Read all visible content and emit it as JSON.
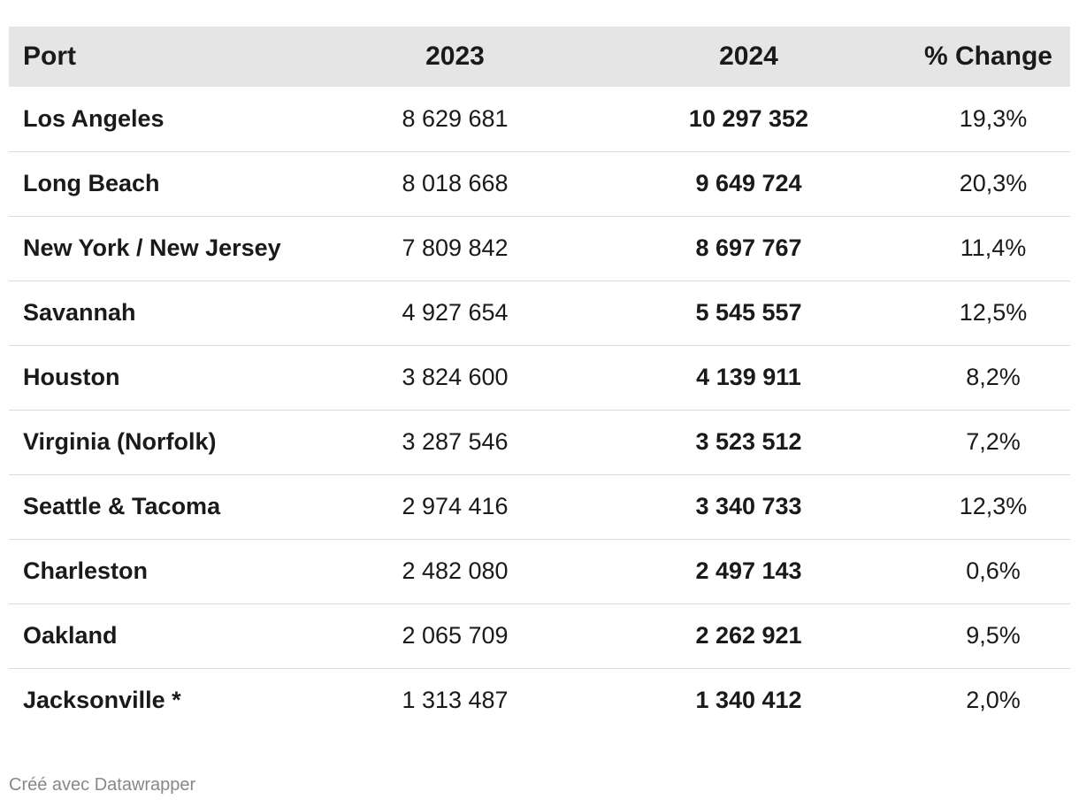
{
  "chart_data": {
    "type": "table",
    "columns": [
      "Port",
      "2023",
      "2024",
      "% Change"
    ],
    "rows": [
      {
        "port": "Los Angeles",
        "y2023": "8 629 681",
        "y2024": "10 297 352",
        "change": "19,3%"
      },
      {
        "port": "Long Beach",
        "y2023": "8 018 668",
        "y2024": "9 649 724",
        "change": "20,3%"
      },
      {
        "port": "New York / New Jersey",
        "y2023": "7 809 842",
        "y2024": "8 697 767",
        "change": "11,4%"
      },
      {
        "port": "Savannah",
        "y2023": "4 927 654",
        "y2024": "5 545 557",
        "change": "12,5%"
      },
      {
        "port": "Houston",
        "y2023": "3 824 600",
        "y2024": "4 139 911",
        "change": "8,2%"
      },
      {
        "port": "Virginia (Norfolk)",
        "y2023": "3 287 546",
        "y2024": "3 523 512",
        "change": "7,2%"
      },
      {
        "port": "Seattle & Tacoma",
        "y2023": "2 974 416",
        "y2024": "3 340 733",
        "change": "12,3%"
      },
      {
        "port": "Charleston",
        "y2023": "2 482 080",
        "y2024": "2 497 143",
        "change": "0,6%"
      },
      {
        "port": "Oakland",
        "y2023": "2 065 709",
        "y2024": "2 262 921",
        "change": "9,5%"
      },
      {
        "port": "Jacksonville *",
        "y2023": "1 313 487",
        "y2024": "1 340 412",
        "change": "2,0%"
      }
    ],
    "header_color": "#e5e5e5",
    "row_divider_color": "#dcdcdc"
  },
  "footer": {
    "credit": "Créé avec Datawrapper"
  }
}
